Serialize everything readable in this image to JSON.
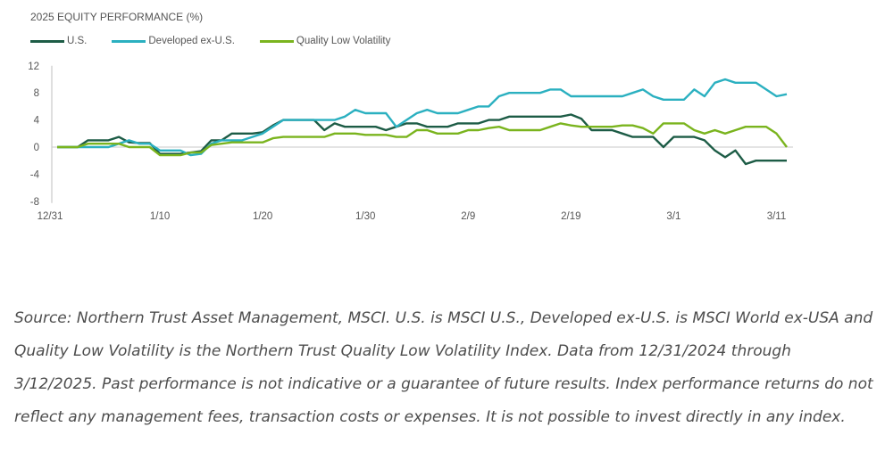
{
  "chart_data": {
    "type": "line",
    "title": "2025 EQUITY PERFORMANCE (%)",
    "x_tick_labels": [
      "12/31",
      "1/10",
      "1/20",
      "1/30",
      "2/9",
      "2/19",
      "3/1",
      "3/11"
    ],
    "y_tick_labels": [
      "12",
      "8",
      "4",
      "0",
      "-4",
      "-8"
    ],
    "ylim": [
      -8,
      12
    ],
    "xlim": [
      0,
      71
    ],
    "grid": false,
    "legend_position": "top-left",
    "x": [
      0,
      2,
      3,
      4,
      5,
      6,
      7,
      8,
      9,
      10,
      11,
      12,
      13,
      14,
      15,
      16,
      17,
      18,
      19,
      20,
      21,
      22,
      23,
      24,
      25,
      26,
      27,
      28,
      29,
      30,
      31,
      32,
      33,
      34,
      35,
      36,
      37,
      38,
      39,
      40,
      41,
      42,
      43,
      44,
      45,
      46,
      47,
      48,
      49,
      50,
      51,
      52,
      53,
      54,
      55,
      56,
      57,
      58,
      59,
      60,
      61,
      62,
      63,
      64,
      65,
      66,
      67,
      68,
      69,
      70,
      71
    ],
    "series": [
      {
        "name": "U.S.",
        "color": "#1d5c46",
        "values": [
          0,
          0,
          1,
          1,
          1,
          1.5,
          0.7,
          0.6,
          0.6,
          -1,
          -1,
          -1,
          -0.8,
          -0.6,
          1,
          1,
          2,
          2,
          2,
          2.2,
          3.2,
          4,
          4,
          4,
          4,
          2.5,
          3.5,
          3,
          3,
          3,
          3,
          2.5,
          3,
          3.5,
          3.5,
          3,
          3,
          3,
          3.5,
          3.5,
          3.5,
          4,
          4,
          4.5,
          4.5,
          4.5,
          4.5,
          4.5,
          4.5,
          4.8,
          4.2,
          2.5,
          2.5,
          2.5,
          2,
          1.5,
          1.5,
          1.5,
          0,
          1.5,
          1.5,
          1.5,
          1,
          -0.5,
          -1.5,
          -0.5,
          -2.5,
          -2,
          -2,
          -2,
          -2
        ]
      },
      {
        "name": "Developed ex-U.S.",
        "color": "#2bb0c0",
        "values": [
          0,
          0,
          0,
          0,
          0,
          0.5,
          1,
          0.5,
          0.5,
          -0.5,
          -0.5,
          -0.5,
          -1.2,
          -1,
          0.5,
          1,
          1,
          1,
          1.5,
          2,
          3,
          4,
          4,
          4,
          4,
          4,
          4,
          4.5,
          5.5,
          5,
          5,
          5,
          3,
          4,
          5,
          5.5,
          5,
          5,
          5,
          5.5,
          6,
          6,
          7.5,
          8,
          8,
          8,
          8,
          8.5,
          8.5,
          7.5,
          7.5,
          7.5,
          7.5,
          7.5,
          7.5,
          8,
          8.5,
          7.5,
          7,
          7,
          7,
          8.5,
          7.5,
          9.5,
          10,
          9.5,
          9.5,
          9.5,
          8.5,
          7.5,
          7.8
        ]
      },
      {
        "name": "Quality Low Volatility",
        "color": "#7ab41e",
        "values": [
          0,
          0,
          0.5,
          0.5,
          0.5,
          0.5,
          0,
          0,
          0,
          -1.2,
          -1.2,
          -1.2,
          -0.8,
          -0.8,
          0.3,
          0.5,
          0.7,
          0.7,
          0.7,
          0.7,
          1.3,
          1.5,
          1.5,
          1.5,
          1.5,
          1.5,
          2,
          2,
          2,
          1.8,
          1.8,
          1.8,
          1.5,
          1.5,
          2.5,
          2.5,
          2,
          2,
          2,
          2.5,
          2.5,
          2.8,
          3,
          2.5,
          2.5,
          2.5,
          2.5,
          3,
          3.5,
          3.2,
          3,
          3,
          3,
          3,
          3.2,
          3.2,
          2.8,
          2,
          3.5,
          3.5,
          3.5,
          2.5,
          2,
          2.5,
          2,
          2.5,
          3,
          3,
          3,
          2,
          0
        ]
      }
    ]
  },
  "source_note": "Source: Northern Trust Asset Management, MSCI. U.S. is MSCI U.S., Developed ex-U.S. is MSCI World ex-USA and Quality Low Volatility is the Northern Trust Quality Low Volatility Index. Data from 12/31/2024 through 3/12/2025. Past performance is not indicative or a guarantee of future results. Index performance returns do not reflect any management fees, transaction costs or expenses. It is not possible to invest directly in any index."
}
